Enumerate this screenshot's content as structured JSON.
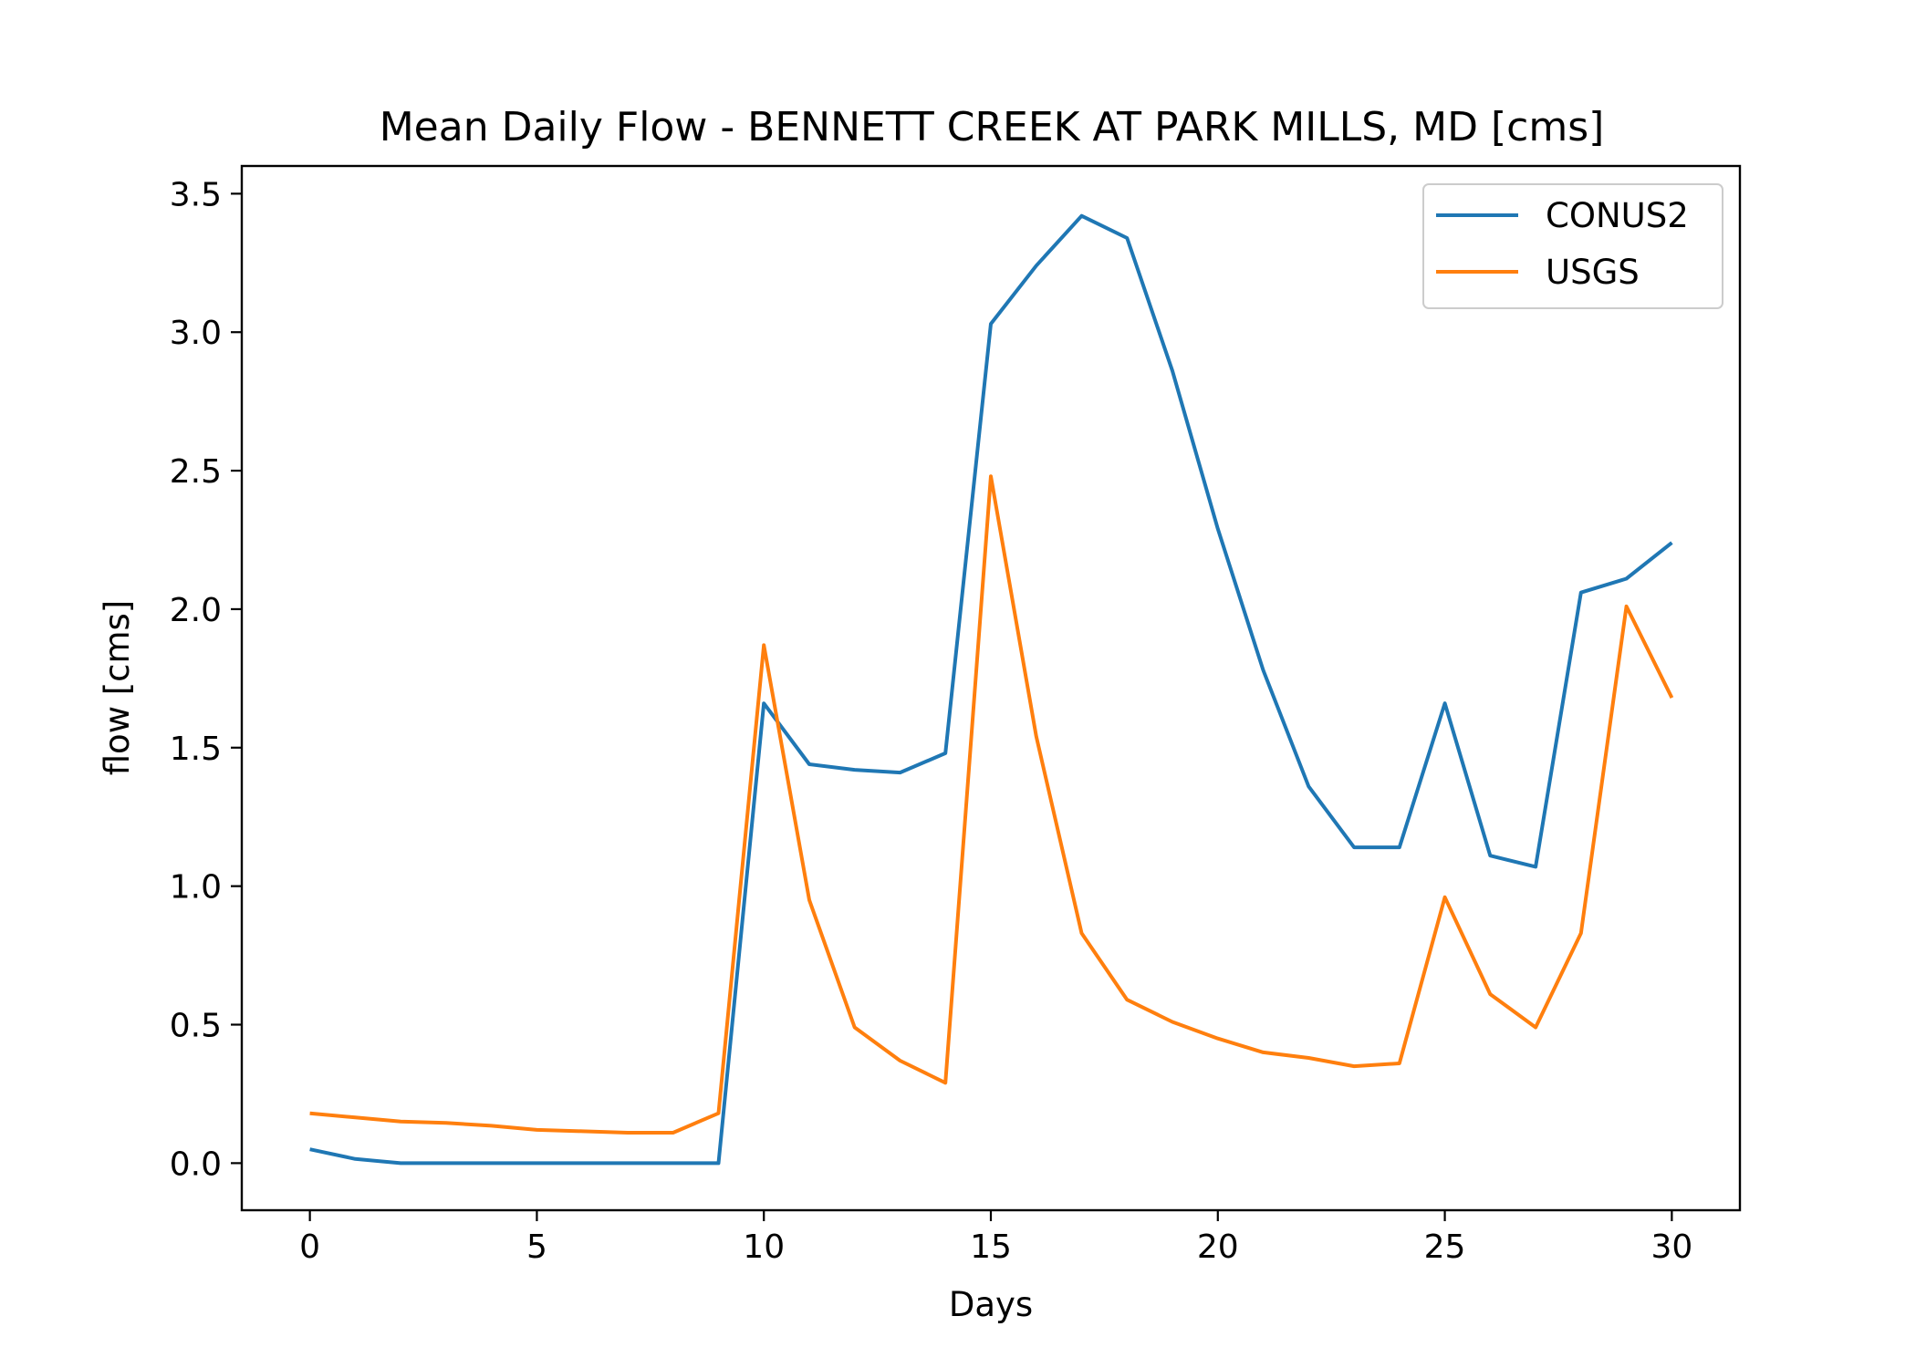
{
  "chart_data": {
    "type": "line",
    "title": "Mean Daily Flow - BENNETT CREEK AT PARK MILLS, MD [cms]",
    "xlabel": "Days",
    "ylabel": "flow [cms]",
    "xlim": [
      -1.5,
      31.5
    ],
    "ylim": [
      -0.17,
      3.6
    ],
    "xticks": [
      0,
      5,
      10,
      15,
      20,
      25,
      30
    ],
    "xtick_labels": [
      "0",
      "5",
      "10",
      "15",
      "20",
      "25",
      "30"
    ],
    "yticks": [
      0.0,
      0.5,
      1.0,
      1.5,
      2.0,
      2.5,
      3.0,
      3.5
    ],
    "ytick_labels": [
      "0.0",
      "0.5",
      "1.0",
      "1.5",
      "2.0",
      "2.5",
      "3.0",
      "3.5"
    ],
    "grid": false,
    "legend_position": "top-right",
    "x": [
      0,
      1,
      2,
      3,
      4,
      5,
      6,
      7,
      8,
      9,
      10,
      11,
      12,
      13,
      14,
      15,
      16,
      17,
      18,
      19,
      20,
      21,
      22,
      23,
      24,
      25,
      26,
      27,
      28,
      29,
      30
    ],
    "series": [
      {
        "name": "CONUS2",
        "color": "#1f77b4",
        "values": [
          0.05,
          0.015,
          0.0,
          0.0,
          0.0,
          0.0,
          0.0,
          0.0,
          0.0,
          0.0,
          1.66,
          1.44,
          1.42,
          1.41,
          1.48,
          3.03,
          3.24,
          3.42,
          3.34,
          2.86,
          2.29,
          1.78,
          1.36,
          1.14,
          1.14,
          1.66,
          1.11,
          1.07,
          2.06,
          2.11,
          2.24
        ]
      },
      {
        "name": "USGS",
        "color": "#ff7f0e",
        "values": [
          0.18,
          0.165,
          0.15,
          0.145,
          0.135,
          0.12,
          0.115,
          0.11,
          0.11,
          0.18,
          1.87,
          0.95,
          0.49,
          0.37,
          0.29,
          2.48,
          1.54,
          0.83,
          0.59,
          0.51,
          0.45,
          0.4,
          0.38,
          0.35,
          0.36,
          0.96,
          0.61,
          0.49,
          0.83,
          2.01,
          1.68
        ]
      }
    ]
  }
}
